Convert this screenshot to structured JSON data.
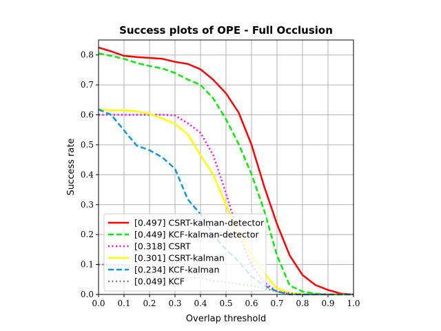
{
  "chart_data": {
    "type": "line",
    "title": "Success plots of OPE - Full Occlusion",
    "xlabel": "Overlap threshold",
    "ylabel": "Success rate",
    "xlim": [
      0,
      1
    ],
    "ylim": [
      0,
      0.85
    ],
    "xticks": [
      "0.0",
      "0.1",
      "0.2",
      "0.3",
      "0.4",
      "0.5",
      "0.6",
      "0.7",
      "0.8",
      "0.9",
      "1.0"
    ],
    "yticks": [
      "0.0",
      "0.1",
      "0.2",
      "0.3",
      "0.4",
      "0.5",
      "0.6",
      "0.7",
      "0.8"
    ],
    "grid": true,
    "legend_position": "lower-left",
    "x": [
      0,
      0.05,
      0.1,
      0.15,
      0.2,
      0.25,
      0.3,
      0.35,
      0.4,
      0.45,
      0.5,
      0.55,
      0.6,
      0.65,
      0.7,
      0.75,
      0.8,
      0.85,
      0.9,
      0.95,
      1.0
    ],
    "series": [
      {
        "name": "[0.497] CSRT-kalman-detector",
        "color": "#ff0000",
        "dash": "solid",
        "values": [
          0.825,
          0.812,
          0.797,
          0.793,
          0.79,
          0.787,
          0.777,
          0.77,
          0.752,
          0.717,
          0.672,
          0.607,
          0.5,
          0.36,
          0.235,
          0.13,
          0.065,
          0.032,
          0.015,
          0.003,
          0.0
        ]
      },
      {
        "name": "[0.449] KCF-kalman-detector",
        "color": "#00ee00",
        "dash": "dashed",
        "values": [
          0.805,
          0.797,
          0.787,
          0.773,
          0.763,
          0.755,
          0.74,
          0.718,
          0.7,
          0.655,
          0.585,
          0.502,
          0.402,
          0.28,
          0.13,
          0.03,
          0.01,
          0.003,
          0.0,
          0.0,
          0.0
        ]
      },
      {
        "name": "[0.318] CSRT",
        "color": "#ff00ff",
        "dash": "dotted",
        "values": [
          0.6,
          0.6,
          0.6,
          0.6,
          0.6,
          0.6,
          0.598,
          0.572,
          0.54,
          0.465,
          0.338,
          0.2,
          0.1,
          0.04,
          0.01,
          0.002,
          0.0,
          0.0,
          0.0,
          0.0,
          0.0
        ]
      },
      {
        "name": "[0.301] CSRT-kalman",
        "color": "#ffff00",
        "dash": "solid",
        "values": [
          0.618,
          0.615,
          0.615,
          0.612,
          0.603,
          0.588,
          0.57,
          0.535,
          0.465,
          0.4,
          0.3,
          0.2,
          0.13,
          0.07,
          0.02,
          0.005,
          0.0,
          0.0,
          0.0,
          0.0,
          0.0
        ]
      },
      {
        "name": "[0.234] KCF-kalman",
        "color": "#0099dd",
        "dash": "dashed",
        "values": [
          0.618,
          0.6,
          0.548,
          0.497,
          0.482,
          0.458,
          0.42,
          0.318,
          0.268,
          0.2,
          0.15,
          0.11,
          0.06,
          0.03,
          0.01,
          0.0,
          0.0,
          0.0,
          0.0,
          0.0,
          0.0
        ]
      },
      {
        "name": "[0.049] KCF",
        "color": "#808080",
        "dash": "dotted",
        "values": [
          0.1,
          0.1,
          0.1,
          0.08,
          0.06,
          0.058,
          0.057,
          0.057,
          0.055,
          0.045,
          0.04,
          0.035,
          0.03,
          0.02,
          0.01,
          0.005,
          0.0,
          0.0,
          0.0,
          0.0,
          0.0
        ]
      }
    ]
  }
}
